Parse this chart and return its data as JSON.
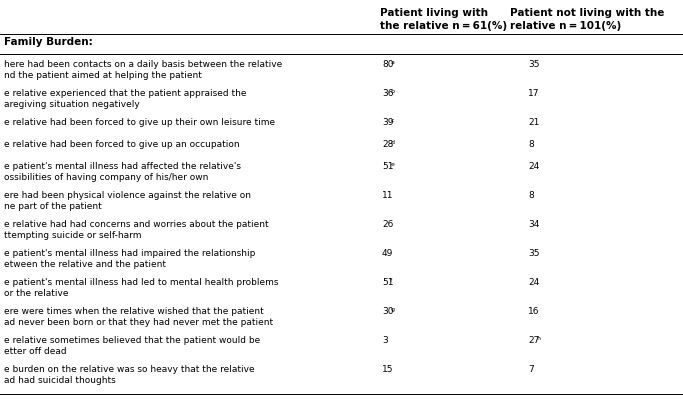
{
  "col2_header_line1": "Patient living with",
  "col2_header_line2": "the relative n = 61(%)",
  "col3_header_line1": "Patient not living with the",
  "col3_header_line2": "relative n = 101(%)",
  "header_col1": "Family Burden:",
  "rows": [
    {
      "text_line1": "here had been contacts on a daily basis between the relative",
      "text_line2": "nd the patient aimed at helping the patient",
      "val1": "80",
      "val1_sup": "a",
      "val2": "35",
      "val2_sup": ""
    },
    {
      "text_line1": "e relative experienced that the patient appraised the",
      "text_line2": "aregiving situation negatively",
      "val1": "36",
      "val1_sup": "b",
      "val2": "17",
      "val2_sup": ""
    },
    {
      "text_line1": "e relative had been forced to give up their own leisure time",
      "text_line2": "",
      "val1": "39",
      "val1_sup": "c",
      "val2": "21",
      "val2_sup": ""
    },
    {
      "text_line1": "e relative had been forced to give up an occupation",
      "text_line2": "",
      "val1": "28",
      "val1_sup": "d",
      "val2": "8",
      "val2_sup": ""
    },
    {
      "text_line1": "e patient's mental illness had affected the relative's",
      "text_line2": "ossibilities of having company of his/her own",
      "val1": "51",
      "val1_sup": "e",
      "val2": "24",
      "val2_sup": ""
    },
    {
      "text_line1": "ere had been physical violence against the relative on",
      "text_line2": "ne part of the patient",
      "val1": "11",
      "val1_sup": "",
      "val2": "8",
      "val2_sup": ""
    },
    {
      "text_line1": "e relative had had concerns and worries about the patient",
      "text_line2": "ttempting suicide or self-harm",
      "val1": "26",
      "val1_sup": "",
      "val2": "34",
      "val2_sup": ""
    },
    {
      "text_line1": "e patient's mental illness had impaired the relationship",
      "text_line2": "etween the relative and the patient",
      "val1": "49",
      "val1_sup": "",
      "val2": "35",
      "val2_sup": ""
    },
    {
      "text_line1": "e patient's mental illness had led to mental health problems",
      "text_line2": "or the relative",
      "val1": "51",
      "val1_sup": "f",
      "val2": "24",
      "val2_sup": ""
    },
    {
      "text_line1": "ere were times when the relative wished that the patient",
      "text_line2": "ad never been born or that they had never met the patient",
      "val1": "30",
      "val1_sup": "g",
      "val2": "16",
      "val2_sup": ""
    },
    {
      "text_line1": "e relative sometimes believed that the patient would be",
      "text_line2": "etter off dead",
      "val1": "3",
      "val1_sup": "",
      "val2": "27",
      "val2_sup": "h"
    },
    {
      "text_line1": "e burden on the relative was so heavy that the relative",
      "text_line2": "ad had suicidal thoughts",
      "val1": "15",
      "val1_sup": "",
      "val2": "7",
      "val2_sup": ""
    }
  ],
  "bg_color": "#ffffff",
  "text_color": "#000000",
  "font_size": 6.5,
  "header_font_size": 7.5
}
